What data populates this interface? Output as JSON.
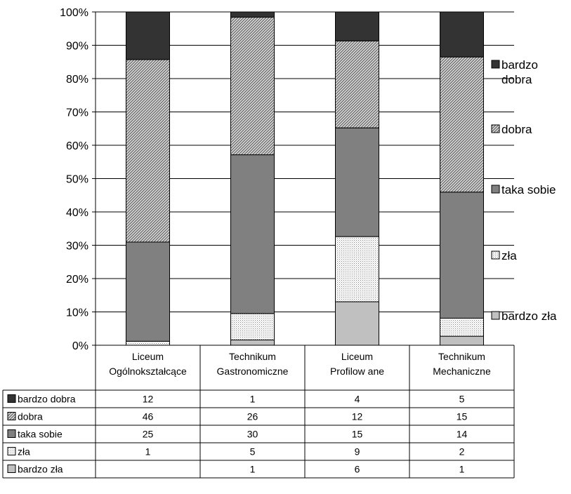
{
  "chart_data": {
    "type": "bar",
    "stacked": "percent",
    "categories": [
      [
        "Liceum",
        "Ogólnokształcące"
      ],
      [
        "Technikum",
        "Gastronomiczne"
      ],
      [
        "Liceum",
        "Profilow ane"
      ],
      [
        "Technikum",
        "Mechaniczne"
      ]
    ],
    "series": [
      {
        "name": "bardzo zła",
        "values": [
          null,
          1,
          6,
          1
        ],
        "color": "#c0c0c0",
        "pattern": "light"
      },
      {
        "name": "zła",
        "values": [
          1,
          5,
          9,
          2
        ],
        "color": "#f0f0f0",
        "pattern": "dots"
      },
      {
        "name": "taka sobie",
        "values": [
          25,
          30,
          15,
          14
        ],
        "color": "#808080",
        "pattern": "solid"
      },
      {
        "name": "dobra",
        "values": [
          46,
          26,
          12,
          15
        ],
        "color": "#b0b0b0",
        "pattern": "hatch"
      },
      {
        "name": "bardzo dobra",
        "values": [
          12,
          1,
          4,
          5
        ],
        "color": "#333333",
        "pattern": "solid"
      }
    ],
    "legend": [
      {
        "name": "bardzo dobra",
        "lines": [
          "bardzo",
          "dobra"
        ]
      },
      {
        "name": "dobra",
        "lines": [
          "dobra"
        ]
      },
      {
        "name": "taka sobie",
        "lines": [
          "taka sobie"
        ]
      },
      {
        "name": "zła",
        "lines": [
          "zła"
        ]
      },
      {
        "name": "bardzo zła",
        "lines": [
          "bardzo zła"
        ]
      }
    ],
    "table_rows": [
      {
        "name": "bardzo dobra",
        "cells": [
          "12",
          "1",
          "4",
          "5"
        ]
      },
      {
        "name": "dobra",
        "cells": [
          "46",
          "26",
          "12",
          "15"
        ]
      },
      {
        "name": "taka sobie",
        "cells": [
          "25",
          "30",
          "15",
          "14"
        ]
      },
      {
        "name": "zła",
        "cells": [
          "1",
          "5",
          "9",
          "2"
        ]
      },
      {
        "name": "bardzo zła",
        "cells": [
          "",
          "1",
          "6",
          "1"
        ]
      }
    ],
    "yticks": [
      "0%",
      "10%",
      "20%",
      "30%",
      "40%",
      "50%",
      "60%",
      "70%",
      "80%",
      "90%",
      "100%"
    ],
    "ylim": [
      0,
      100
    ],
    "grid": true,
    "legend_position": "right",
    "data_table": true
  }
}
